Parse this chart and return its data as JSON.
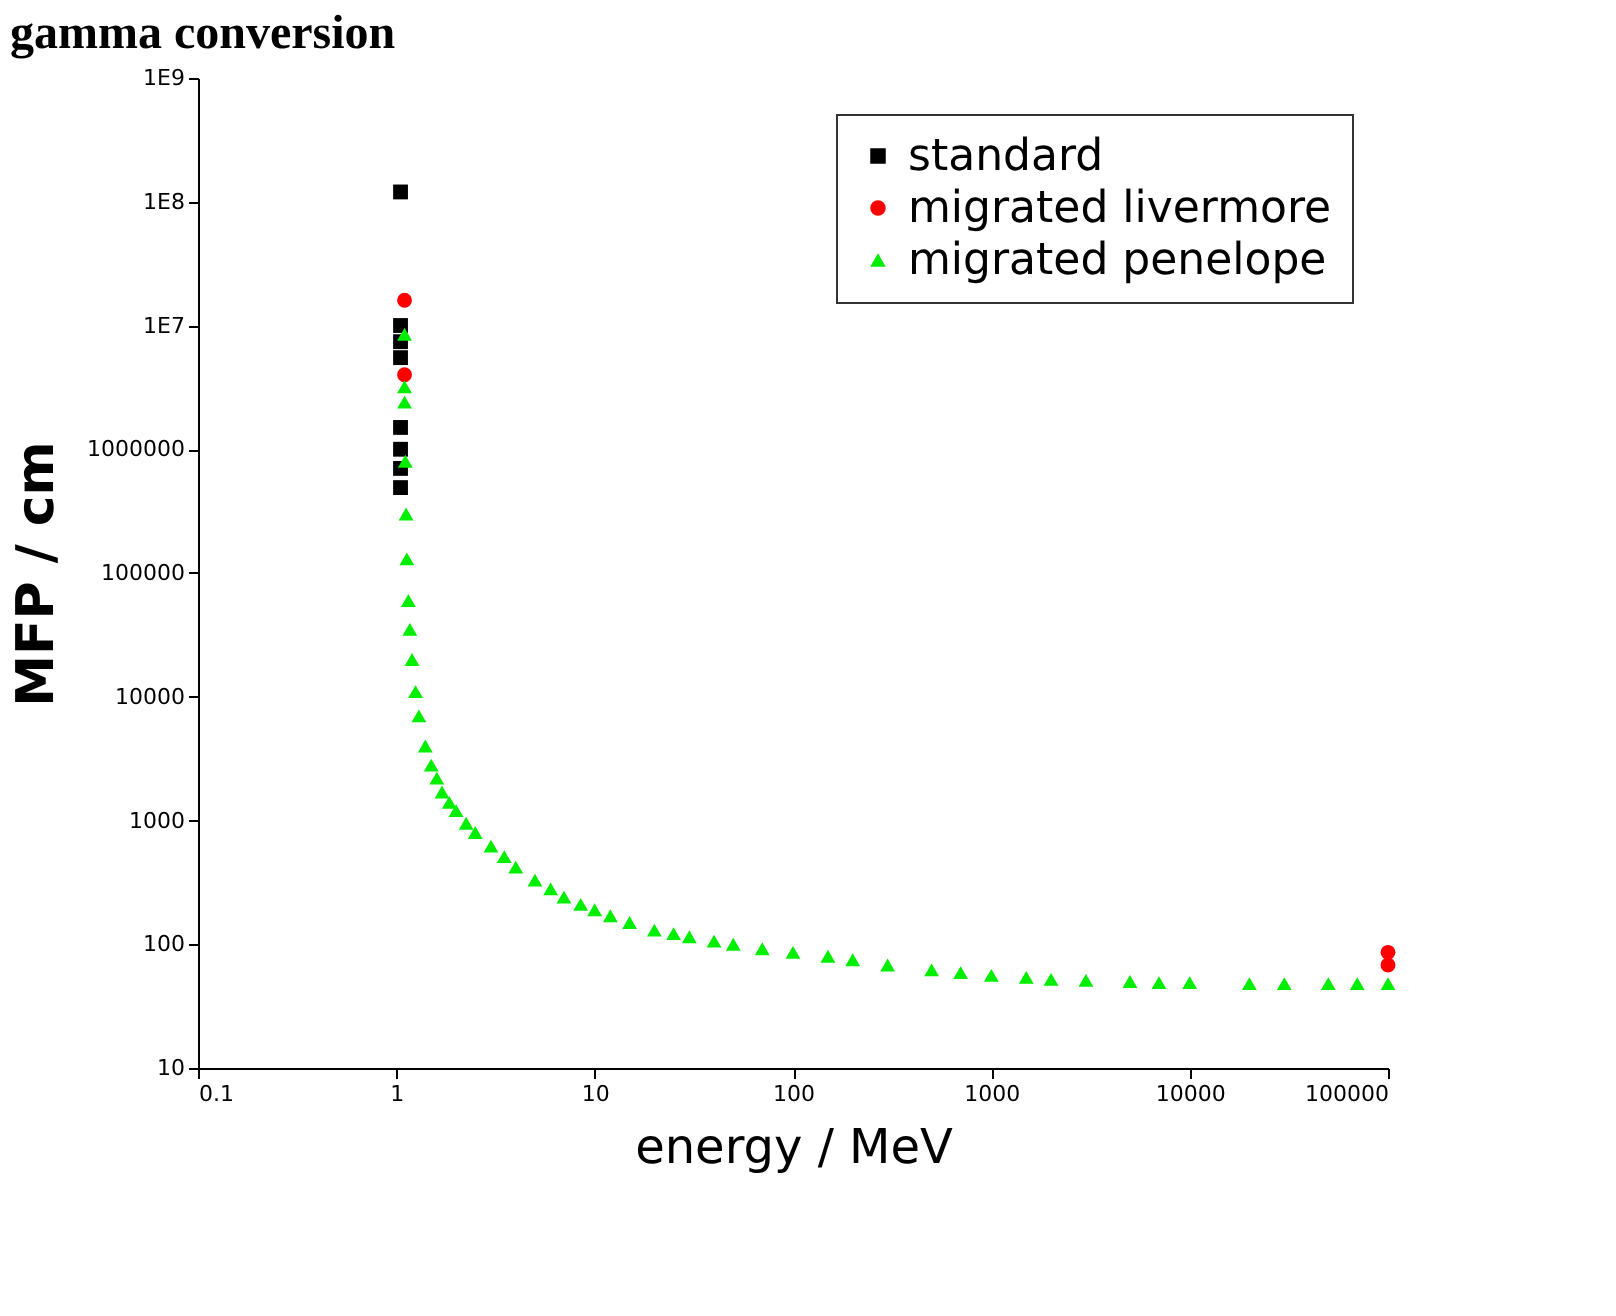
{
  "chart_data": {
    "type": "scatter",
    "title": "gamma conversion",
    "xlabel": "energy / MeV",
    "ylabel": "MFP / cm",
    "log": "xy",
    "grid": false,
    "legend": "top right",
    "xlim": [
      0.1,
      100000
    ],
    "xticks": [
      0.1,
      1,
      10,
      100,
      1000,
      10000,
      100000
    ],
    "ylim": [
      10,
      1000000000
    ],
    "yticks": [
      10,
      100,
      1000,
      10000,
      100000,
      1000000,
      {
        "value": 10000000,
        "label": "1E7"
      },
      {
        "value": 100000000,
        "label": "1E8"
      },
      {
        "value": 1000000000,
        "label": "1E9"
      }
    ],
    "series": [
      {
        "name": "standard",
        "color": "#000000",
        "marker": "square",
        "x": [
          1.05,
          1.05,
          1.05,
          1.05,
          1.05,
          1.05,
          1.05,
          1.05
        ],
        "values": [
          120000000,
          10000000,
          7400000,
          5500000,
          1500000,
          1000000,
          700000,
          490000
        ]
      },
      {
        "name": "migrated livermore",
        "color": "#ff0000",
        "marker": "circle",
        "x": [
          1.1,
          1.1,
          100000,
          100000
        ],
        "values": [
          16000000,
          4000000,
          68,
          86
        ]
      },
      {
        "name": "migrated penelope",
        "color": "#00ee00",
        "marker": "triangle",
        "x": [
          1.1,
          1.1,
          1.1,
          1.11,
          1.12,
          1.13,
          1.15,
          1.17,
          1.2,
          1.25,
          1.3,
          1.4,
          1.5,
          1.6,
          1.7,
          1.85,
          2,
          2.25,
          2.5,
          3,
          3.5,
          4,
          5,
          6,
          7,
          8.5,
          10,
          12,
          15,
          20,
          25,
          30,
          40,
          50,
          70,
          100,
          150,
          200,
          300,
          500,
          700,
          1000,
          1500,
          2000,
          3000,
          5000,
          7000,
          10000,
          20000,
          30000,
          50000,
          70000,
          100000
        ],
        "values": [
          8500000,
          3200000,
          2400000,
          800000,
          300000,
          130000,
          60000,
          35000,
          20000,
          11000,
          7000,
          4000,
          2800,
          2200,
          1700,
          1400,
          1200,
          950,
          800,
          620,
          510,
          420,
          330,
          280,
          240,
          210,
          190,
          170,
          150,
          130,
          122,
          115,
          106,
          100,
          92,
          86,
          80,
          75,
          68,
          62,
          59,
          56,
          54,
          52,
          51,
          50,
          49,
          49,
          48,
          48,
          48,
          48,
          48
        ]
      }
    ]
  }
}
